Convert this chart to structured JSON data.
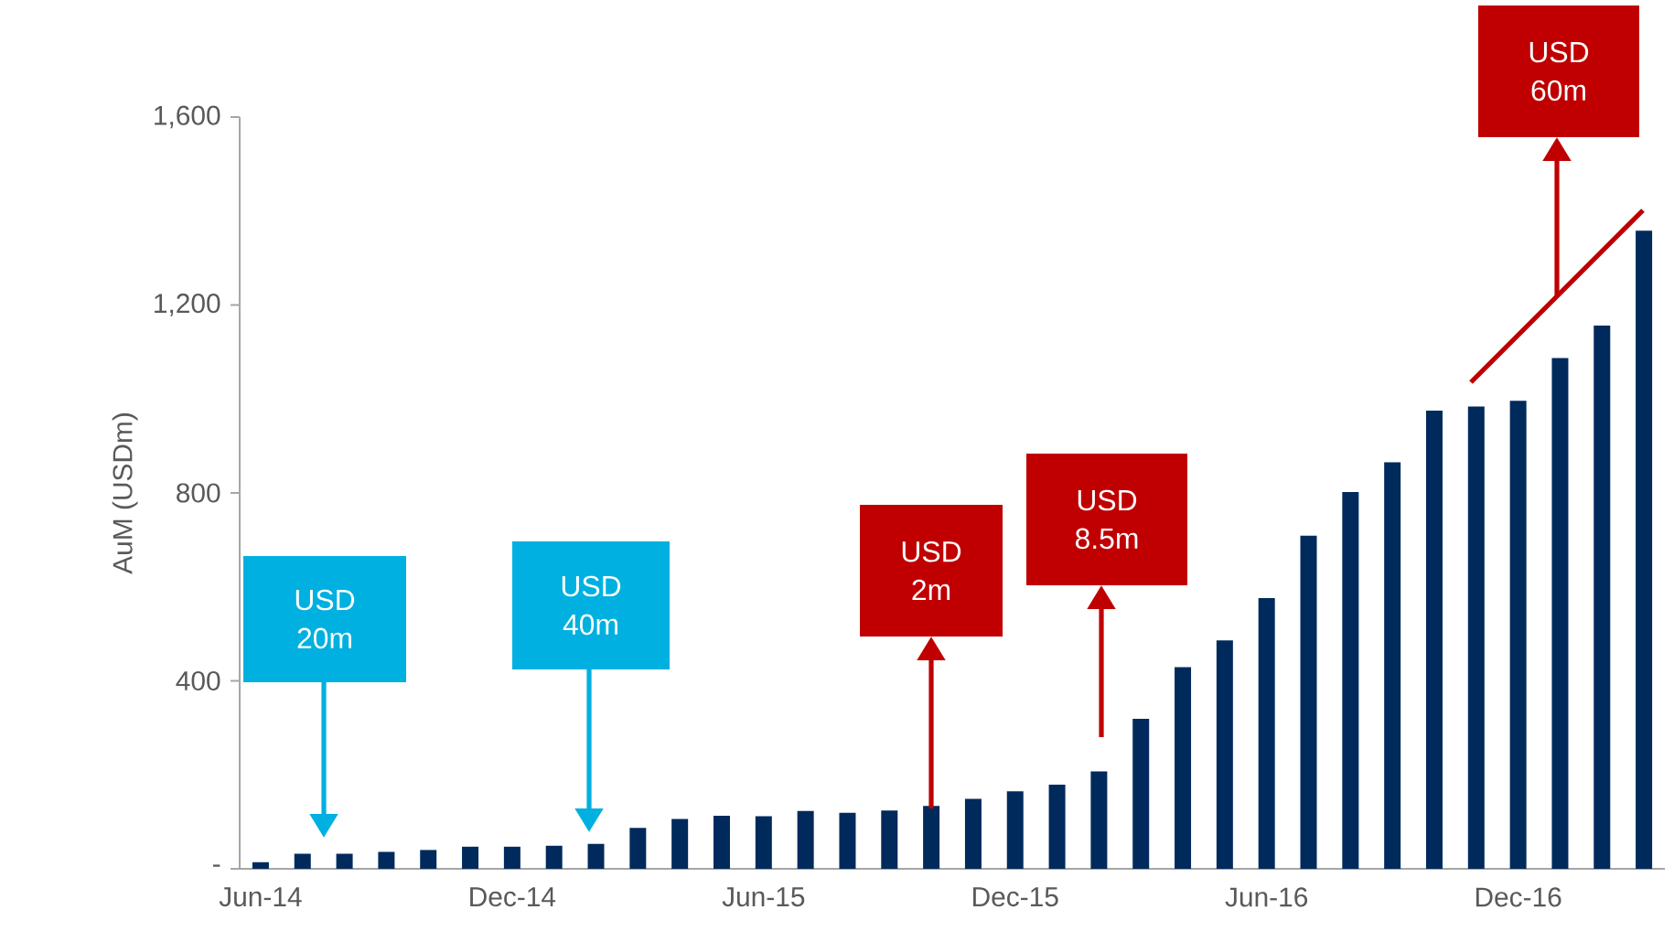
{
  "chart_data": {
    "type": "bar",
    "ylabel": "AuM (USDm)",
    "categories": [
      "Jun-14",
      null,
      null,
      null,
      null,
      null,
      "Dec-14",
      null,
      null,
      null,
      null,
      null,
      "Jun-15",
      null,
      null,
      null,
      null,
      null,
      "Dec-15",
      null,
      null,
      null,
      null,
      null,
      "Jun-16",
      null,
      null,
      null,
      null,
      null,
      "Dec-16",
      null,
      null,
      null
    ],
    "values": [
      14,
      32,
      32,
      36,
      40,
      47,
      47,
      49,
      53,
      87,
      106,
      113,
      112,
      123,
      119,
      124,
      134,
      149,
      165,
      179,
      207,
      319,
      429,
      486,
      576,
      709,
      802,
      865,
      975,
      984,
      996,
      1087,
      1156,
      1358
    ],
    "color": "#002a5c",
    "ylim": [
      0,
      1600
    ],
    "yticks": [
      {
        "value": 0,
        "label": "-"
      },
      400,
      800,
      {
        "value": 1200,
        "label": "1,200"
      },
      {
        "value": 1600,
        "label": "1,600"
      }
    ],
    "annotations": [
      "USD 20m",
      "USD 40m",
      "USD 2m",
      "USD 8.5m",
      "USD 60m"
    ]
  }
}
